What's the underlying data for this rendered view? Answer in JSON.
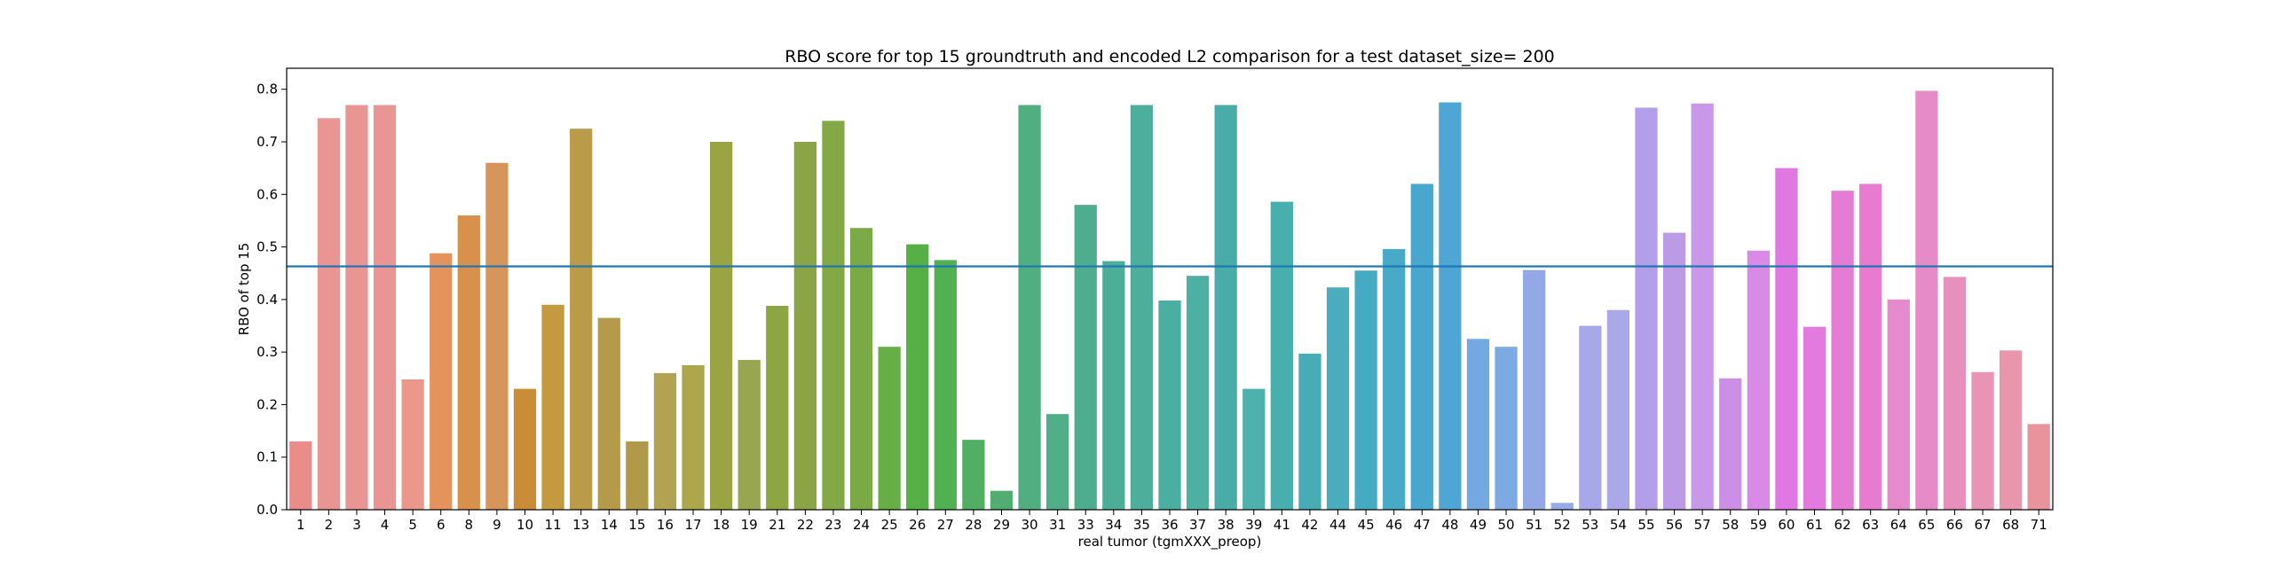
{
  "chart_data": {
    "type": "bar",
    "title": "RBO score for top 15 groundtruth and encoded L2 comparison for a test dataset_size= 200",
    "xlabel": "real tumor (tgmXXX_preop)",
    "ylabel": "RBO of top 15",
    "ylim": [
      0,
      0.84
    ],
    "yticks": [
      "0.0",
      "0.1",
      "0.2",
      "0.3",
      "0.4",
      "0.5",
      "0.6",
      "0.7",
      "0.8"
    ],
    "grid": false,
    "reference_line": {
      "y": 0.463,
      "color": "#1f77b4"
    },
    "categories": [
      "1",
      "2",
      "3",
      "4",
      "5",
      "6",
      "8",
      "9",
      "10",
      "11",
      "13",
      "14",
      "15",
      "16",
      "17",
      "18",
      "19",
      "21",
      "22",
      "23",
      "24",
      "25",
      "26",
      "27",
      "28",
      "29",
      "30",
      "31",
      "33",
      "34",
      "35",
      "36",
      "37",
      "38",
      "39",
      "41",
      "42",
      "44",
      "45",
      "46",
      "47",
      "48",
      "49",
      "50",
      "51",
      "52",
      "53",
      "54",
      "55",
      "56",
      "57",
      "58",
      "59",
      "60",
      "61",
      "62",
      "63",
      "64",
      "65",
      "66",
      "67",
      "68",
      "71"
    ],
    "values": [
      0.13,
      0.745,
      0.77,
      0.77,
      0.248,
      0.488,
      0.56,
      0.66,
      0.23,
      0.39,
      0.725,
      0.365,
      0.13,
      0.26,
      0.275,
      0.7,
      0.285,
      0.388,
      0.7,
      0.74,
      0.536,
      0.31,
      0.505,
      0.475,
      0.133,
      0.036,
      0.77,
      0.182,
      0.58,
      0.473,
      0.77,
      0.398,
      0.445,
      0.77,
      0.23,
      0.586,
      0.297,
      0.423,
      0.455,
      0.496,
      0.62,
      0.775,
      0.325,
      0.31,
      0.456,
      0.013,
      0.35,
      0.38,
      0.765,
      0.527,
      0.773,
      0.25,
      0.493,
      0.65,
      0.348,
      0.607,
      0.62,
      0.4,
      0.797,
      0.443,
      0.262,
      0.303,
      0.163
    ],
    "colors": [
      "#e98d8b",
      "#e99593",
      "#e99593",
      "#e99593",
      "#e9988a",
      "#e5935c",
      "#d8914d",
      "#d6955a",
      "#cb8c3a",
      "#c39a40",
      "#b99b49",
      "#b69a4b",
      "#b09a4a",
      "#b2a352",
      "#aca64c",
      "#9aa443",
      "#98a551",
      "#8ea544",
      "#8ba546",
      "#84a845",
      "#7aa945",
      "#66ae45",
      "#56b045",
      "#51b051",
      "#51ae62",
      "#51ae70",
      "#51ae80",
      "#50ae88",
      "#4ead8e",
      "#4cae96",
      "#4dae9c",
      "#4aaea0",
      "#4eb0a3",
      "#49aca8",
      "#4fb1ae",
      "#48aeae",
      "#47acb6",
      "#4bacbd",
      "#45abc3",
      "#48aac7",
      "#49a6cc",
      "#4ea6d4",
      "#74a8e0",
      "#7daae3",
      "#92a9e6",
      "#96ace8",
      "#a6a8ea",
      "#aba8ea",
      "#b39eea",
      "#bb9ae6",
      "#c899e8",
      "#cb90e5",
      "#d98ae6",
      "#e078e4",
      "#e27ae0",
      "#e47bd4",
      "#e67bd0",
      "#e58acc",
      "#e78ac8",
      "#e890bd",
      "#e993b5",
      "#e996ac",
      "#e9939d"
    ]
  }
}
